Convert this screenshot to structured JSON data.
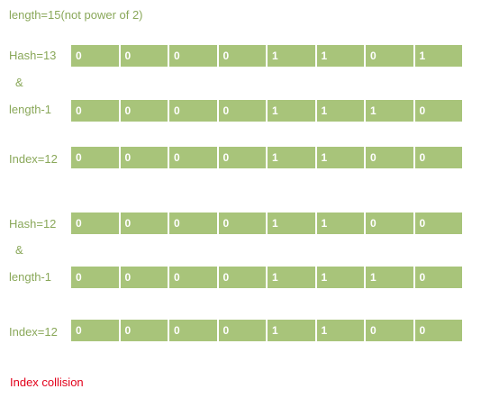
{
  "title": "length=15(not power of 2)",
  "groups": [
    {
      "rows": [
        {
          "label": "Hash=13",
          "bits": [
            "0",
            "0",
            "0",
            "0",
            "1",
            "1",
            "0",
            "1"
          ]
        },
        {
          "label": "length-1",
          "bits": [
            "0",
            "0",
            "0",
            "0",
            "1",
            "1",
            "1",
            "0"
          ]
        },
        {
          "label": "Index=12",
          "bits": [
            "0",
            "0",
            "0",
            "0",
            "1",
            "1",
            "0",
            "0"
          ]
        }
      ],
      "operator": "&"
    },
    {
      "rows": [
        {
          "label": "Hash=12",
          "bits": [
            "0",
            "0",
            "0",
            "0",
            "1",
            "1",
            "0",
            "0"
          ]
        },
        {
          "label": "length-1",
          "bits": [
            "0",
            "0",
            "0",
            "0",
            "1",
            "1",
            "1",
            "0"
          ]
        },
        {
          "label": "Index=12",
          "bits": [
            "0",
            "0",
            "0",
            "0",
            "1",
            "1",
            "0",
            "0"
          ]
        }
      ],
      "operator": "&"
    }
  ],
  "note": "Index collision",
  "colors": {
    "cell_fill": "#a8c47a",
    "label_text": "#8aa85a",
    "note_text": "#e2001a"
  }
}
